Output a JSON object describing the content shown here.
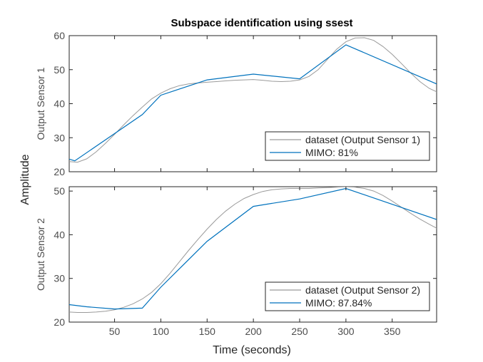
{
  "chart_data": {
    "type": "line",
    "title": "Subspace identification using ssest",
    "xlabel": "Time (seconds)",
    "ylabel": "Amplitude",
    "xlim": [
      1,
      398
    ],
    "xticks": [
      50,
      100,
      150,
      200,
      250,
      300,
      350
    ],
    "grid": false,
    "subplots": [
      {
        "ylabel": "Output Sensor 1",
        "ylim": [
          20,
          60
        ],
        "yticks": [
          20,
          30,
          40,
          50,
          60
        ],
        "legend_position": "bottom-right",
        "series": [
          {
            "name": "dataset (Output Sensor 1)",
            "color": "#9a9a9a",
            "x": [
              1,
              10,
              20,
              30,
              40,
              50,
              60,
              70,
              80,
              90,
              100,
              110,
              120,
              130,
              140,
              150,
              160,
              170,
              180,
              190,
              200,
              210,
              220,
              230,
              240,
              250,
              260,
              270,
              280,
              290,
              300,
              310,
              320,
              330,
              340,
              350,
              360,
              370,
              380,
              390,
              398
            ],
            "y": [
              23,
              22.8,
              23.8,
              25.8,
              28.3,
              31,
              33.8,
              36.5,
              39,
              41.4,
              43.1,
              44.4,
              45.3,
              45.8,
              46.1,
              46.3,
              46.5,
              46.7,
              46.9,
              47.0,
              47.1,
              46.9,
              46.6,
              46.5,
              46.6,
              47.0,
              48.0,
              50.0,
              53.0,
              56.0,
              58.2,
              59.3,
              59.4,
              58.6,
              56.8,
              54.5,
              51.8,
              49.0,
              46.5,
              44.5,
              43.5
            ]
          },
          {
            "name": "MIMO:  81%",
            "color": "#0072bd",
            "x": [
              1,
              7,
              80,
              100,
              150,
              200,
              250,
              300,
              398
            ],
            "y": [
              23.7,
              23.2,
              36.8,
              42.5,
              47.0,
              48.7,
              47.3,
              57.3,
              45.8
            ]
          }
        ]
      },
      {
        "ylabel": "Output Sensor 2",
        "ylim": [
          20,
          51
        ],
        "yticks": [
          20,
          30,
          40,
          50
        ],
        "legend_position": "bottom-right",
        "series": [
          {
            "name": "dataset (Output Sensor 2)",
            "color": "#9a9a9a",
            "x": [
              1,
              10,
              20,
              30,
              40,
              50,
              60,
              70,
              80,
              90,
              100,
              110,
              120,
              130,
              140,
              150,
              160,
              170,
              180,
              190,
              200,
              210,
              220,
              230,
              240,
              250,
              260,
              270,
              280,
              290,
              300,
              310,
              320,
              330,
              340,
              350,
              360,
              370,
              380,
              390,
              398
            ],
            "y": [
              22.3,
              22.2,
              22.2,
              22.3,
              22.5,
              22.8,
              23.4,
              24.2,
              25.3,
              26.8,
              28.8,
              31.2,
              33.8,
              36.4,
              38.9,
              41.3,
              43.5,
              45.4,
              47.0,
              48.3,
              49.2,
              49.9,
              50.3,
              50.5,
              50.6,
              50.6,
              50.6,
              50.7,
              50.8,
              50.9,
              51.0,
              50.9,
              50.6,
              50.0,
              49.0,
              47.7,
              46.3,
              44.9,
              43.6,
              42.4,
              41.5
            ]
          },
          {
            "name": "MIMO: 87.84%",
            "color": "#0072bd",
            "x": [
              1,
              20,
              50,
              80,
              100,
              150,
              200,
              250,
              300,
              398
            ],
            "y": [
              24.0,
              23.5,
              23.0,
              23.2,
              28.0,
              38.5,
              46.5,
              48.2,
              50.6,
              43.5
            ]
          }
        ]
      }
    ]
  }
}
